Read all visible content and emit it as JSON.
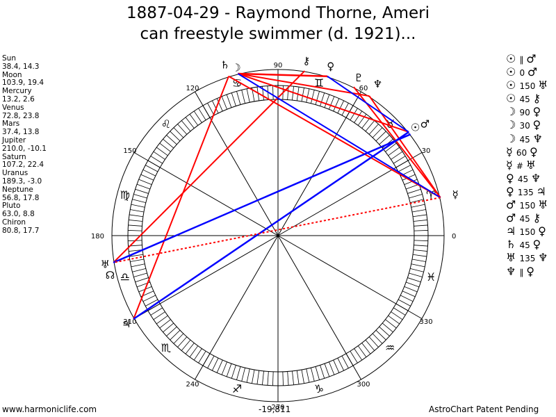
{
  "title": {
    "line1": "1887-04-29 - Raymond Thorne, Ameri",
    "line2": "can freestyle swimmer (d. 1921)..."
  },
  "planets": [
    {
      "name": "Sun",
      "pos": "38.4, 14.3"
    },
    {
      "name": "Moon",
      "pos": "103.9, 19.4"
    },
    {
      "name": "Mercury",
      "pos": "13.2, 2.6"
    },
    {
      "name": "Venus",
      "pos": "72.8, 23.8"
    },
    {
      "name": "Mars",
      "pos": "37.4, 13.8"
    },
    {
      "name": "Jupiter",
      "pos": "210.0, -10.1"
    },
    {
      "name": "Saturn",
      "pos": "107.2, 22.4"
    },
    {
      "name": "Uranus",
      "pos": "189.3, -3.0"
    },
    {
      "name": "Neptune",
      "pos": "56.8, 17.8"
    },
    {
      "name": "Pluto",
      "pos": "63.0, 8.8"
    },
    {
      "name": "Chiron",
      "pos": "80.8, 17.7"
    }
  ],
  "aspects": [
    {
      "p1": "☉",
      "asp": "∥",
      "p2": "♂"
    },
    {
      "p1": "☉",
      "asp": "0",
      "p2": "♂"
    },
    {
      "p1": "☉",
      "asp": "150",
      "p2": "♅"
    },
    {
      "p1": "☉",
      "asp": "45",
      "p2": "⚷"
    },
    {
      "p1": "☽",
      "asp": "90",
      "p2": "♀"
    },
    {
      "p1": "☽",
      "asp": "30",
      "p2": "♀"
    },
    {
      "p1": "☽",
      "asp": "45",
      "p2": "♆"
    },
    {
      "p1": "☿",
      "asp": "60",
      "p2": "♀"
    },
    {
      "p1": "☿",
      "asp": "#",
      "p2": "♅"
    },
    {
      "p1": "♀",
      "asp": "45",
      "p2": "♆"
    },
    {
      "p1": "♀",
      "asp": "135",
      "p2": "♃"
    },
    {
      "p1": "♂",
      "asp": "150",
      "p2": "♅"
    },
    {
      "p1": "♂",
      "asp": "45",
      "p2": "⚷"
    },
    {
      "p1": "♃",
      "asp": "150",
      "p2": "♀"
    },
    {
      "p1": "♄",
      "asp": "45",
      "p2": "♀"
    },
    {
      "p1": "♅",
      "asp": "135",
      "p2": "♆"
    },
    {
      "p1": "♆",
      "asp": "∥",
      "p2": "♀"
    }
  ],
  "wheel": {
    "degree_labels": [
      "0",
      "30",
      "60",
      "90",
      "120",
      "150",
      "180",
      "210",
      "240",
      "270",
      "300",
      "330"
    ],
    "zodiac_glyphs": [
      "♈",
      "♉",
      "♊",
      "♋",
      "♌",
      "♍",
      "♎",
      "♏",
      "♐",
      "♑",
      "♒",
      "♓"
    ],
    "planet_glyphs": {
      "sun": "☉",
      "moon": "☽",
      "mercury": "☿",
      "venus": "♀",
      "mars": "♂",
      "jupiter": "♃",
      "saturn": "♄",
      "uranus": "♅",
      "neptune": "♆",
      "pluto": "♇",
      "chiron": "⚷",
      "node": "☊"
    },
    "planet_longitudes": {
      "sun": 38.4,
      "moon": 103.9,
      "mercury": 13.2,
      "venus": 72.8,
      "mars": 37.4,
      "jupiter": 210.0,
      "saturn": 107.2,
      "uranus": 189.3,
      "neptune": 56.8,
      "pluto": 63.0,
      "chiron": 80.8
    },
    "colors": {
      "hard_aspect": "#ff0000",
      "soft_aspect": "#0000ff",
      "minor_aspect": "#ff0000"
    }
  },
  "footer": {
    "left": "www.harmoniclife.com",
    "center": "-19,811",
    "right": "AstroChart Patent Pending"
  }
}
